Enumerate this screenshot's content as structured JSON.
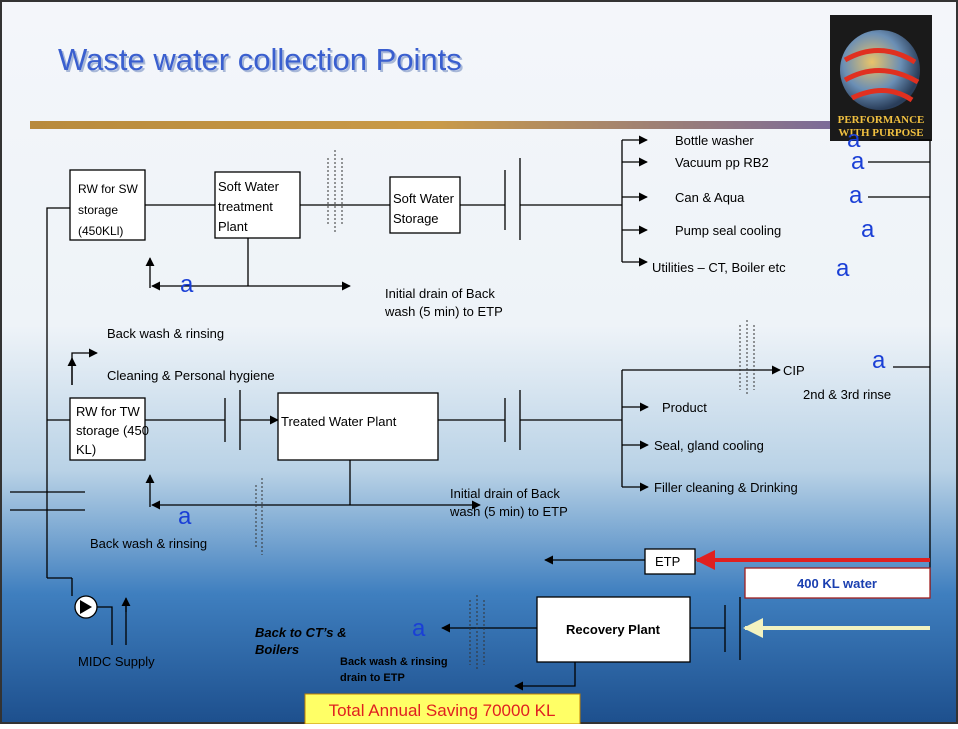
{
  "title": "Waste water collection Points",
  "logo": [
    "PERFORMANCE",
    "WITH PURPOSE"
  ],
  "nodes": [
    {
      "lines": [
        "RW for SW",
        "storage",
        "(450KLl)"
      ]
    },
    {
      "lines": [
        "Soft Water",
        "treatment",
        "Plant"
      ]
    },
    {
      "lines": [
        "Soft Water",
        "Storage"
      ]
    },
    {
      "lines": [
        "RW for TW",
        "storage (450",
        "KL)"
      ]
    },
    {
      "lines": [
        "Treated  Water Plant"
      ]
    },
    {
      "lines": [
        "ETP"
      ]
    },
    {
      "lines": [
        "400 KL water"
      ]
    },
    {
      "lines": [
        "Recovery Plant"
      ]
    }
  ],
  "uses": [
    "Bottle washer",
    "Vacuum pp RB2",
    "Can & Aqua",
    "Pump seal cooling",
    "Utilities – CT, Boiler etc",
    "CIP",
    "2nd & 3rd rinse",
    "Product",
    "Seal, gland cooling",
    "Filler cleaning & Drinking",
    "Cleaning & Personal hygiene"
  ],
  "notes": [
    {
      "lines": [
        "Initial drain of Back",
        "wash (5 min) to ETP"
      ]
    },
    {
      "lines": [
        "Back wash & rinsing"
      ]
    },
    {
      "lines": [
        "Initial drain of Back",
        "wash (5 min) to ETP"
      ]
    },
    {
      "lines": [
        "Back wash & rinsing"
      ]
    },
    {
      "lines": [
        "Back to CT’s &",
        "Boilers"
      ]
    },
    {
      "lines": [
        "Back wash & rinsing",
        "drain to ETP"
      ]
    },
    {
      "lines": [
        "MIDC Supply"
      ]
    }
  ],
  "check_marks": [
    "a",
    "a",
    "a",
    "a",
    "a",
    "a",
    "a",
    "a",
    "a"
  ],
  "footer": "Total Annual Saving 70000 KL"
}
